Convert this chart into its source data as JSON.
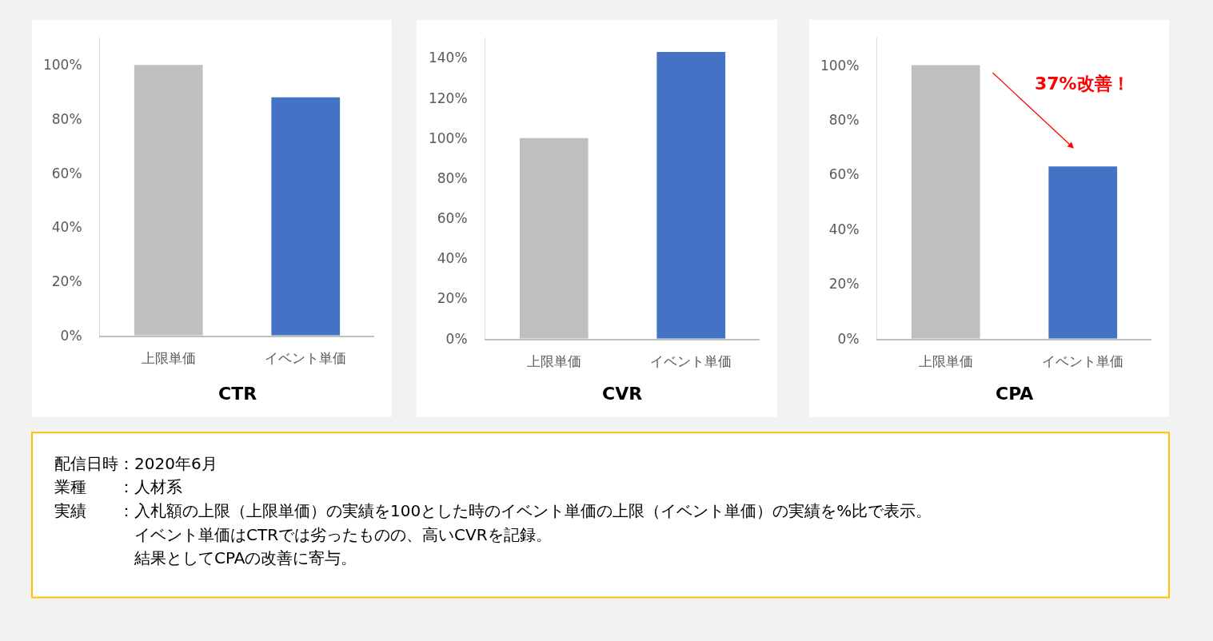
{
  "chart_data": [
    {
      "type": "bar",
      "title": "CTR",
      "categories": [
        "上限単価",
        "イベント単価"
      ],
      "values": [
        100,
        88
      ],
      "colors": [
        "#bfbfbf",
        "#4472c4"
      ],
      "ylim": [
        0,
        110
      ],
      "yticks": [
        {
          "value": 0,
          "label": "0%"
        },
        {
          "value": 20,
          "label": "20%"
        },
        {
          "value": 40,
          "label": "40%"
        },
        {
          "value": 60,
          "label": "60%"
        },
        {
          "value": 80,
          "label": "80%"
        },
        {
          "value": 100,
          "label": "100%"
        }
      ],
      "grid": false
    },
    {
      "type": "bar",
      "title": "CVR",
      "categories": [
        "上限単価",
        "イベント単価"
      ],
      "values": [
        100,
        143
      ],
      "colors": [
        "#bfbfbf",
        "#4472c4"
      ],
      "ylim": [
        0,
        150
      ],
      "yticks": [
        {
          "value": 0,
          "label": "0%"
        },
        {
          "value": 20,
          "label": "20%"
        },
        {
          "value": 40,
          "label": "40%"
        },
        {
          "value": 60,
          "label": "60%"
        },
        {
          "value": 80,
          "label": "80%"
        },
        {
          "value": 100,
          "label": "100%"
        },
        {
          "value": 120,
          "label": "120%"
        },
        {
          "value": 140,
          "label": "140%"
        }
      ],
      "grid": false
    },
    {
      "type": "bar",
      "title": "CPA",
      "categories": [
        "上限単価",
        "イベント単価"
      ],
      "values": [
        100,
        63
      ],
      "colors": [
        "#bfbfbf",
        "#4472c4"
      ],
      "ylim": [
        0,
        110
      ],
      "yticks": [
        {
          "value": 0,
          "label": "0%"
        },
        {
          "value": 20,
          "label": "20%"
        },
        {
          "value": 40,
          "label": "40%"
        },
        {
          "value": 60,
          "label": "60%"
        },
        {
          "value": 80,
          "label": "80%"
        },
        {
          "value": 100,
          "label": "100%"
        }
      ],
      "grid": false,
      "annotations": [
        "37%改善！"
      ]
    },
    {
      "type": "other",
      "annotations": [
        "配信日時：2020年6月",
        "業種　　：人材系",
        "実績　　：入札額の上限（上限単価）の実績を100とした時のイベント単価の上限（イベント単価）の実績を%比で表示。",
        "　　　　　イベント単価はCTRでは劣ったものの、高いCVRを記録。",
        "　　　　　結果としてCPAの改善に寄与。"
      ]
    }
  ]
}
